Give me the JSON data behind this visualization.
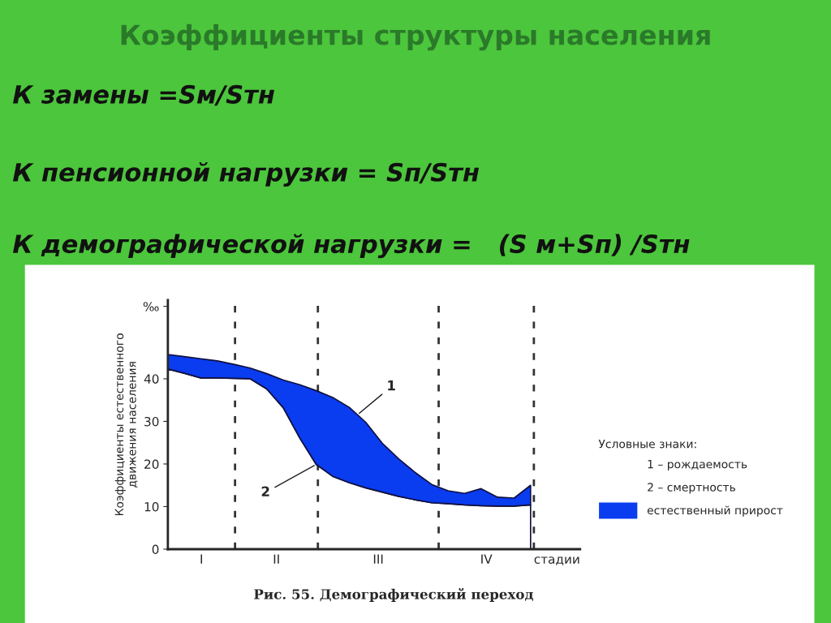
{
  "chart_data": {
    "type": "area",
    "title": "Коэффициенты структуры населения",
    "ylabel": "Коэффициенты естественного\nдвижения населения",
    "legend_title": "Условные знаки:",
    "categories": [
      null,
      null,
      null,
      null,
      null,
      null,
      null,
      null,
      null,
      null,
      null,
      null,
      null,
      null,
      null,
      null,
      null,
      null,
      null,
      null,
      null,
      null,
      null
    ],
    "stacked": true,
    "series": [
      {
        "color": "#ffffff",
        "values": [
          42.3,
          41.3,
          40.2,
          40.2,
          40.1,
          40,
          37.6,
          33.2,
          26.1,
          19.9,
          17.1,
          15.6,
          14.4,
          13.4,
          12.4,
          11.6,
          10.9,
          10.7,
          10.4,
          10.2,
          10.1,
          10.1,
          10.4
        ]
      },
      {
        "name": "естественный прирост",
        "color": "#0a3cf0",
        "values": [
          3.4,
          3.9,
          4.5,
          4.0,
          3.3,
          2.5,
          3.6,
          6.5,
          12.5,
          17.3,
          18.5,
          17.7,
          15.4,
          11.5,
          8.8,
          6.4,
          4.3,
          3.0,
          2.7,
          4.0,
          2.1,
          1.9,
          4.6
        ]
      }
    ],
    "ylim": [
      0,
      58.5
    ],
    "yticks": [
      0,
      10,
      20,
      30,
      40,
      {
        "value": 57,
        "label": "‰"
      }
    ],
    "annotations": [
      "К замены =Sм/Sтн",
      "К пенсионной нагрузки = Sп/Sтн",
      "К демографической нагрузки =   (S м+Sп) /Sтн",
      "Рис. 55. Демографический переход",
      "1 – рождаемость",
      "2 – смертность",
      "I",
      "II",
      "III",
      "IV",
      "стадии",
      "1",
      "2"
    ],
    "legend": "right",
    "grid": false
  }
}
